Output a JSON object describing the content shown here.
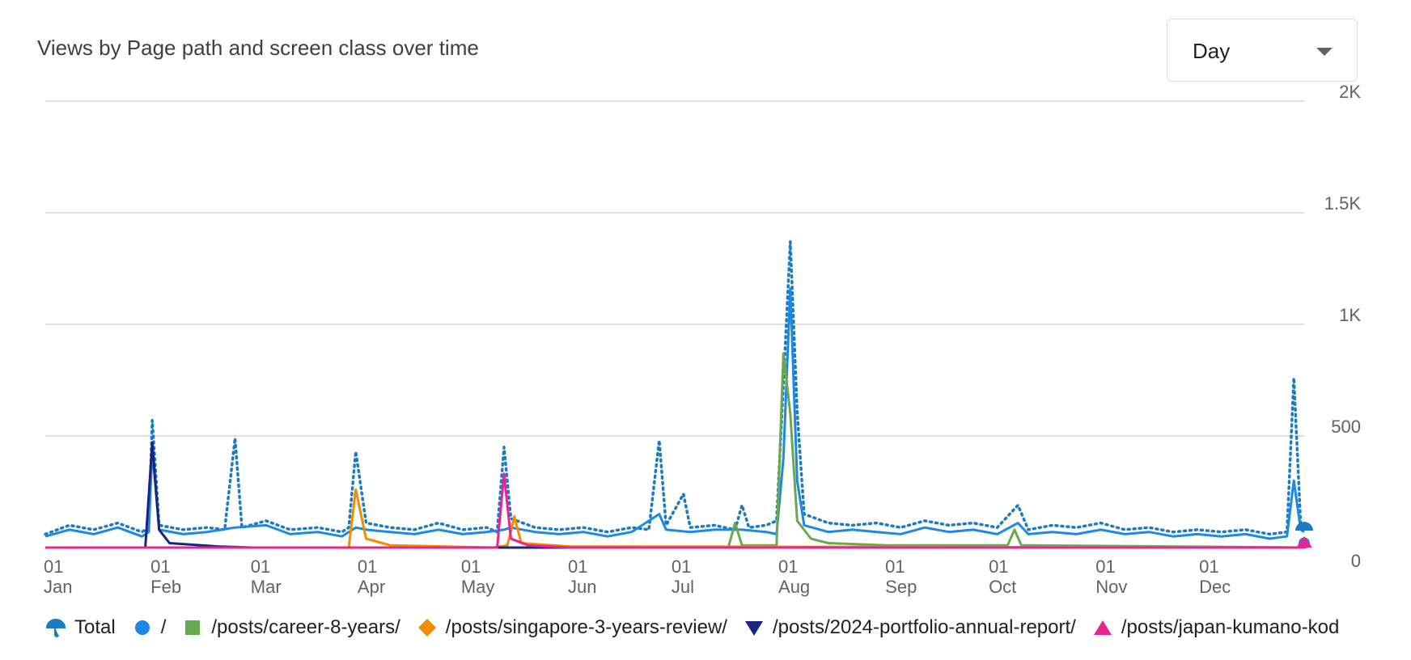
{
  "header": {
    "title": "Views by Page path and screen class over time"
  },
  "granularity": {
    "selected": "Day"
  },
  "chart_data": {
    "type": "line",
    "title": "Views by Page path and screen class over time",
    "x_range": [
      "2024-01-01",
      "2024-12-31"
    ],
    "x_ticks": [
      {
        "day": "01",
        "month": "Jan",
        "date": "2024-01-01"
      },
      {
        "day": "01",
        "month": "Feb",
        "date": "2024-02-01"
      },
      {
        "day": "01",
        "month": "Mar",
        "date": "2024-03-01"
      },
      {
        "day": "01",
        "month": "Apr",
        "date": "2024-04-01"
      },
      {
        "day": "01",
        "month": "May",
        "date": "2024-05-01"
      },
      {
        "day": "01",
        "month": "Jun",
        "date": "2024-06-01"
      },
      {
        "day": "01",
        "month": "Jul",
        "date": "2024-07-01"
      },
      {
        "day": "01",
        "month": "Aug",
        "date": "2024-08-01"
      },
      {
        "day": "01",
        "month": "Sep",
        "date": "2024-09-01"
      },
      {
        "day": "01",
        "month": "Oct",
        "date": "2024-10-01"
      },
      {
        "day": "01",
        "month": "Nov",
        "date": "2024-11-01"
      },
      {
        "day": "01",
        "month": "Dec",
        "date": "2024-12-01"
      }
    ],
    "y_ticks": [
      {
        "value": 0,
        "label": "0"
      },
      {
        "value": 500,
        "label": "500"
      },
      {
        "value": 1000,
        "label": "1K"
      },
      {
        "value": 1500,
        "label": "1.5K"
      },
      {
        "value": 2000,
        "label": "2K"
      }
    ],
    "ylim": [
      0,
      2000
    ],
    "grid": true,
    "legend_position": "bottom",
    "series": [
      {
        "name": "Total",
        "color": "#1a73e8",
        "style": "dotted",
        "marker": "umbrella",
        "points": [
          [
            "2024-01-01",
            60
          ],
          [
            "2024-01-08",
            100
          ],
          [
            "2024-01-15",
            80
          ],
          [
            "2024-01-22",
            110
          ],
          [
            "2024-01-29",
            70
          ],
          [
            "2024-01-31",
            90
          ],
          [
            "2024-02-01",
            570
          ],
          [
            "2024-02-03",
            100
          ],
          [
            "2024-02-10",
            80
          ],
          [
            "2024-02-17",
            90
          ],
          [
            "2024-02-22",
            80
          ],
          [
            "2024-02-25",
            490
          ],
          [
            "2024-02-27",
            90
          ],
          [
            "2024-03-05",
            120
          ],
          [
            "2024-03-12",
            80
          ],
          [
            "2024-03-20",
            90
          ],
          [
            "2024-03-27",
            70
          ],
          [
            "2024-03-29",
            90
          ],
          [
            "2024-03-31",
            430
          ],
          [
            "2024-04-03",
            110
          ],
          [
            "2024-04-10",
            90
          ],
          [
            "2024-04-17",
            80
          ],
          [
            "2024-04-24",
            110
          ],
          [
            "2024-05-01",
            80
          ],
          [
            "2024-05-08",
            90
          ],
          [
            "2024-05-11",
            70
          ],
          [
            "2024-05-13",
            450
          ],
          [
            "2024-05-15",
            130
          ],
          [
            "2024-05-22",
            90
          ],
          [
            "2024-05-29",
            80
          ],
          [
            "2024-06-05",
            90
          ],
          [
            "2024-06-12",
            70
          ],
          [
            "2024-06-19",
            90
          ],
          [
            "2024-06-24",
            80
          ],
          [
            "2024-06-27",
            480
          ],
          [
            "2024-06-29",
            100
          ],
          [
            "2024-07-04",
            240
          ],
          [
            "2024-07-06",
            90
          ],
          [
            "2024-07-13",
            100
          ],
          [
            "2024-07-19",
            80
          ],
          [
            "2024-07-21",
            190
          ],
          [
            "2024-07-23",
            90
          ],
          [
            "2024-07-28",
            100
          ],
          [
            "2024-07-31",
            120
          ],
          [
            "2024-08-02",
            730
          ],
          [
            "2024-08-04",
            1370
          ],
          [
            "2024-08-06",
            610
          ],
          [
            "2024-08-08",
            150
          ],
          [
            "2024-08-15",
            110
          ],
          [
            "2024-08-22",
            100
          ],
          [
            "2024-08-29",
            110
          ],
          [
            "2024-09-05",
            90
          ],
          [
            "2024-09-12",
            120
          ],
          [
            "2024-09-19",
            100
          ],
          [
            "2024-09-26",
            110
          ],
          [
            "2024-10-03",
            90
          ],
          [
            "2024-10-09",
            190
          ],
          [
            "2024-10-12",
            80
          ],
          [
            "2024-10-19",
            100
          ],
          [
            "2024-10-26",
            90
          ],
          [
            "2024-11-02",
            110
          ],
          [
            "2024-11-09",
            80
          ],
          [
            "2024-11-16",
            90
          ],
          [
            "2024-11-23",
            70
          ],
          [
            "2024-11-30",
            80
          ],
          [
            "2024-12-07",
            70
          ],
          [
            "2024-12-14",
            80
          ],
          [
            "2024-12-21",
            60
          ],
          [
            "2024-12-26",
            70
          ],
          [
            "2024-12-28",
            760
          ],
          [
            "2024-12-30",
            100
          ],
          [
            "2024-12-31",
            90
          ]
        ]
      },
      {
        "name": "/",
        "color": "#1e88e5",
        "style": "solid",
        "marker": "circle",
        "points": [
          [
            "2024-01-01",
            50
          ],
          [
            "2024-01-08",
            80
          ],
          [
            "2024-01-15",
            60
          ],
          [
            "2024-01-22",
            90
          ],
          [
            "2024-01-29",
            50
          ],
          [
            "2024-01-31",
            70
          ],
          [
            "2024-02-01",
            440
          ],
          [
            "2024-02-03",
            80
          ],
          [
            "2024-02-10",
            60
          ],
          [
            "2024-02-17",
            70
          ],
          [
            "2024-02-25",
            90
          ],
          [
            "2024-03-05",
            100
          ],
          [
            "2024-03-12",
            60
          ],
          [
            "2024-03-20",
            70
          ],
          [
            "2024-03-27",
            50
          ],
          [
            "2024-03-31",
            90
          ],
          [
            "2024-04-03",
            80
          ],
          [
            "2024-04-10",
            70
          ],
          [
            "2024-04-17",
            60
          ],
          [
            "2024-04-24",
            80
          ],
          [
            "2024-05-01",
            60
          ],
          [
            "2024-05-08",
            70
          ],
          [
            "2024-05-13",
            80
          ],
          [
            "2024-05-15",
            90
          ],
          [
            "2024-05-22",
            70
          ],
          [
            "2024-05-29",
            60
          ],
          [
            "2024-06-05",
            70
          ],
          [
            "2024-06-12",
            50
          ],
          [
            "2024-06-19",
            70
          ],
          [
            "2024-06-27",
            150
          ],
          [
            "2024-06-29",
            80
          ],
          [
            "2024-07-06",
            70
          ],
          [
            "2024-07-13",
            80
          ],
          [
            "2024-07-21",
            80
          ],
          [
            "2024-07-28",
            70
          ],
          [
            "2024-07-31",
            60
          ],
          [
            "2024-08-02",
            400
          ],
          [
            "2024-08-04",
            1160
          ],
          [
            "2024-08-06",
            300
          ],
          [
            "2024-08-08",
            100
          ],
          [
            "2024-08-15",
            70
          ],
          [
            "2024-08-22",
            80
          ],
          [
            "2024-08-29",
            70
          ],
          [
            "2024-09-05",
            60
          ],
          [
            "2024-09-12",
            90
          ],
          [
            "2024-09-19",
            70
          ],
          [
            "2024-09-26",
            80
          ],
          [
            "2024-10-03",
            60
          ],
          [
            "2024-10-09",
            110
          ],
          [
            "2024-10-12",
            60
          ],
          [
            "2024-10-19",
            70
          ],
          [
            "2024-10-26",
            60
          ],
          [
            "2024-11-02",
            80
          ],
          [
            "2024-11-09",
            60
          ],
          [
            "2024-11-16",
            70
          ],
          [
            "2024-11-23",
            50
          ],
          [
            "2024-11-30",
            60
          ],
          [
            "2024-12-07",
            50
          ],
          [
            "2024-12-14",
            60
          ],
          [
            "2024-12-21",
            40
          ],
          [
            "2024-12-26",
            50
          ],
          [
            "2024-12-28",
            300
          ],
          [
            "2024-12-30",
            80
          ],
          [
            "2024-12-31",
            70
          ]
        ]
      },
      {
        "name": "/posts/career-8-years/",
        "color": "#6aa84f",
        "style": "solid",
        "marker": "square",
        "points": [
          [
            "2024-01-01",
            0
          ],
          [
            "2024-07-17",
            0
          ],
          [
            "2024-07-19",
            110
          ],
          [
            "2024-07-21",
            10
          ],
          [
            "2024-07-31",
            10
          ],
          [
            "2024-08-02",
            870
          ],
          [
            "2024-08-04",
            600
          ],
          [
            "2024-08-06",
            120
          ],
          [
            "2024-08-10",
            40
          ],
          [
            "2024-08-15",
            20
          ],
          [
            "2024-09-01",
            10
          ],
          [
            "2024-10-06",
            10
          ],
          [
            "2024-10-08",
            80
          ],
          [
            "2024-10-10",
            10
          ],
          [
            "2024-12-31",
            0
          ]
        ]
      },
      {
        "name": "/posts/singapore-3-years-review/",
        "color": "#f28c00",
        "style": "solid",
        "marker": "diamond",
        "points": [
          [
            "2024-01-01",
            0
          ],
          [
            "2024-03-29",
            0
          ],
          [
            "2024-03-31",
            260
          ],
          [
            "2024-04-03",
            40
          ],
          [
            "2024-04-10",
            10
          ],
          [
            "2024-05-10",
            0
          ],
          [
            "2024-05-14",
            10
          ],
          [
            "2024-05-16",
            140
          ],
          [
            "2024-05-18",
            20
          ],
          [
            "2024-06-01",
            5
          ],
          [
            "2024-12-31",
            0
          ]
        ]
      },
      {
        "name": "/posts/2024-portfolio-annual-report/",
        "color": "#1a237e",
        "style": "solid",
        "marker": "triangle-down",
        "points": [
          [
            "2024-01-01",
            0
          ],
          [
            "2024-01-30",
            0
          ],
          [
            "2024-02-01",
            470
          ],
          [
            "2024-02-03",
            80
          ],
          [
            "2024-02-06",
            20
          ],
          [
            "2024-02-20",
            5
          ],
          [
            "2024-03-01",
            0
          ],
          [
            "2024-12-31",
            0
          ]
        ]
      },
      {
        "name": "/posts/japan-kumano-kod",
        "color": "#e52592",
        "style": "solid",
        "marker": "triangle-up",
        "points": [
          [
            "2024-01-01",
            0
          ],
          [
            "2024-05-11",
            0
          ],
          [
            "2024-05-13",
            330
          ],
          [
            "2024-05-15",
            40
          ],
          [
            "2024-05-20",
            10
          ],
          [
            "2024-06-01",
            0
          ],
          [
            "2024-12-31",
            0
          ]
        ]
      }
    ]
  }
}
